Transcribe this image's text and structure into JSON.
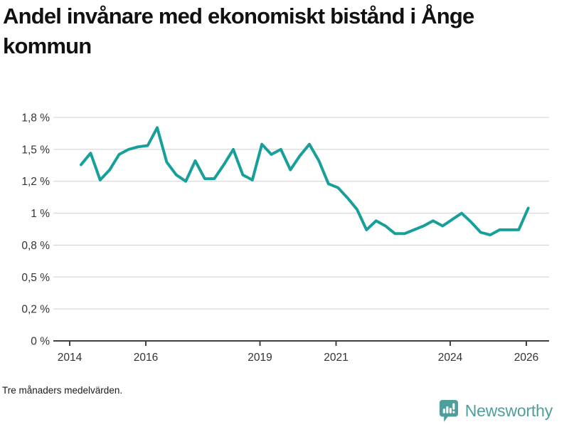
{
  "title": {
    "line1": "Andel invånare med ekonomiskt bistånd i Ånge",
    "line2": "kommun"
  },
  "footer": {
    "note": "Tre månaders medelvärden."
  },
  "branding": {
    "name": "Newsworthy",
    "color": "#4e9f9c",
    "icon": "speech-bubble-bar-chart"
  },
  "chart_data": {
    "type": "line",
    "title": "Andel invånare med ekonomiskt bistånd i Ånge kommun",
    "note": "Tre månaders medelvärden.",
    "xlabel": "",
    "ylabel": "",
    "x_range": [
      2013.57,
      2026.56
    ],
    "y_range": [
      0,
      1.89
    ],
    "grid": true,
    "legend": "none",
    "colors": {
      "line": "#17a09b",
      "grid": "#d9d9d9",
      "axis": "#404040",
      "tick_text": "#333333"
    },
    "x_ticks": [
      {
        "value": 2014,
        "label": "2014"
      },
      {
        "value": 2016,
        "label": "2016"
      },
      {
        "value": 2019,
        "label": "2019"
      },
      {
        "value": 2021,
        "label": "2021"
      },
      {
        "value": 2024,
        "label": "2024"
      },
      {
        "value": 2026,
        "label": "2026"
      }
    ],
    "y_ticks": [
      {
        "value": 0,
        "label": "0 %"
      },
      {
        "value": 0.25,
        "label": "0,2 %"
      },
      {
        "value": 0.5,
        "label": "0,5 %"
      },
      {
        "value": 0.75,
        "label": "0,8 %"
      },
      {
        "value": 1,
        "label": "1 %"
      },
      {
        "value": 1.25,
        "label": "1,2 %"
      },
      {
        "value": 1.5,
        "label": "1,5 %"
      },
      {
        "value": 1.75,
        "label": "1,8 %"
      }
    ],
    "series": [
      {
        "unit": "%",
        "color": "#17a09b",
        "x": [
          2014.3,
          2014.55,
          2014.8,
          2015.05,
          2015.3,
          2015.55,
          2015.8,
          2016.05,
          2016.3,
          2016.55,
          2016.8,
          2017.05,
          2017.3,
          2017.55,
          2017.8,
          2018.05,
          2018.3,
          2018.55,
          2018.8,
          2019.05,
          2019.3,
          2019.55,
          2019.8,
          2020.05,
          2020.3,
          2020.55,
          2020.8,
          2021.05,
          2021.3,
          2021.55,
          2021.8,
          2022.05,
          2022.3,
          2022.55,
          2022.8,
          2023.05,
          2023.3,
          2023.55,
          2023.8,
          2024.05,
          2024.3,
          2024.55,
          2024.8,
          2025.05,
          2025.3,
          2025.55,
          2025.8,
          2026.05
        ],
        "values": [
          1.38,
          1.47,
          1.26,
          1.34,
          1.46,
          1.5,
          1.52,
          1.53,
          1.67,
          1.4,
          1.3,
          1.25,
          1.41,
          1.27,
          1.27,
          1.38,
          1.5,
          1.3,
          1.26,
          1.54,
          1.46,
          1.5,
          1.34,
          1.45,
          1.54,
          1.41,
          1.23,
          1.2,
          1.12,
          1.03,
          0.87,
          0.94,
          0.9,
          0.84,
          0.84,
          0.87,
          0.9,
          0.94,
          0.9,
          0.95,
          1.0,
          0.93,
          0.85,
          0.83,
          0.87,
          0.87,
          0.87,
          1.04
        ]
      }
    ]
  }
}
